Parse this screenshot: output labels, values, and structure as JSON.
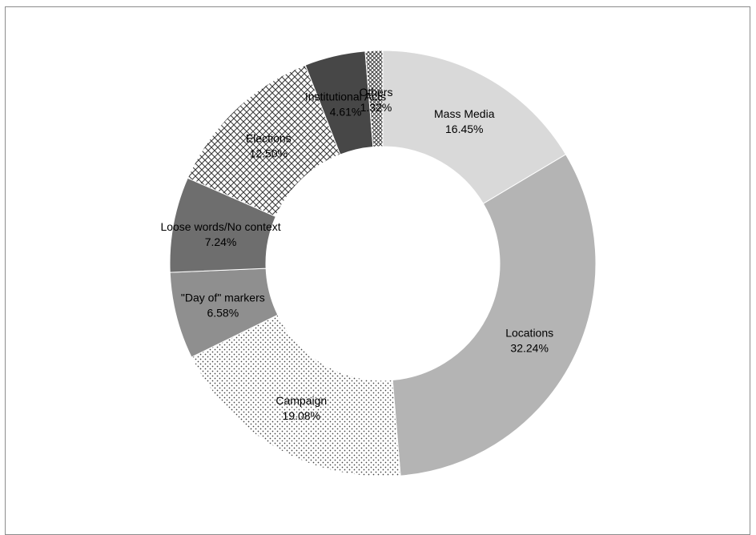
{
  "chart_data": {
    "type": "pie",
    "variant": "donut",
    "start": "top, clockwise",
    "grid": false,
    "legend": "none",
    "slices": [
      {
        "label": "Mass Media",
        "value_text": "16.45%",
        "value": 16.45,
        "fill": "#d9d9d9"
      },
      {
        "label": "Locations",
        "value_text": "32.24%",
        "value": 32.24,
        "fill": "#b4b4b4"
      },
      {
        "label": "Campaign",
        "value_text": "19.08%",
        "value": 19.08,
        "fill": "dots"
      },
      {
        "label": "\"Day of\" markers",
        "value_text": "6.58%",
        "value": 6.58,
        "fill": "#8f8f8f"
      },
      {
        "label": "Loose words/No context",
        "value_text": "7.24%",
        "value": 7.24,
        "fill": "#6e6e6e"
      },
      {
        "label": "Elections",
        "value_text": "12.50%",
        "value": 12.5,
        "fill": "crosshatch"
      },
      {
        "label": "Institutional Acts",
        "value_text": "4.61%",
        "value": 4.61,
        "fill": "#474747"
      },
      {
        "label": "Others",
        "value_text": "1.32%",
        "value": 1.32,
        "fill": "crosshatch-fine"
      }
    ]
  }
}
